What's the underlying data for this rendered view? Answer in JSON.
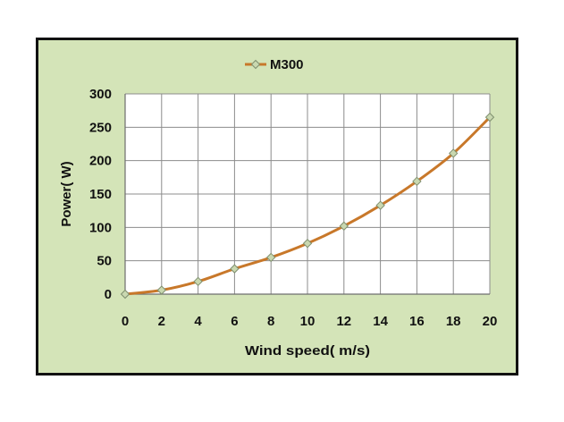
{
  "chart_data": {
    "type": "line",
    "title": "",
    "xlabel": "Wind speed( m/s)",
    "ylabel": "Power( W)",
    "xlim": [
      0,
      20
    ],
    "ylim": [
      0,
      300
    ],
    "x_ticks": [
      "0",
      "2",
      "4",
      "6",
      "8",
      "10",
      "12",
      "14",
      "16",
      "18",
      "20"
    ],
    "y_ticks": [
      "0",
      "50",
      "100",
      "150",
      "200",
      "250",
      "300"
    ],
    "grid": true,
    "legend_position": "top-center",
    "series": [
      {
        "name": "M300",
        "color": "#c8782a",
        "marker": "diamond",
        "x": [
          0,
          2,
          4,
          6,
          8,
          10,
          12,
          14,
          16,
          18,
          20
        ],
        "y": [
          0,
          6,
          19,
          38,
          55,
          76,
          102,
          133,
          169,
          211,
          265
        ]
      }
    ]
  },
  "colors": {
    "plot_background": "#ffffff",
    "frame_background": "#d4e4b8",
    "grid": "#8c8c8c",
    "marker_fill": "#c9d8b0",
    "marker_stroke": "#7f8f6f"
  }
}
